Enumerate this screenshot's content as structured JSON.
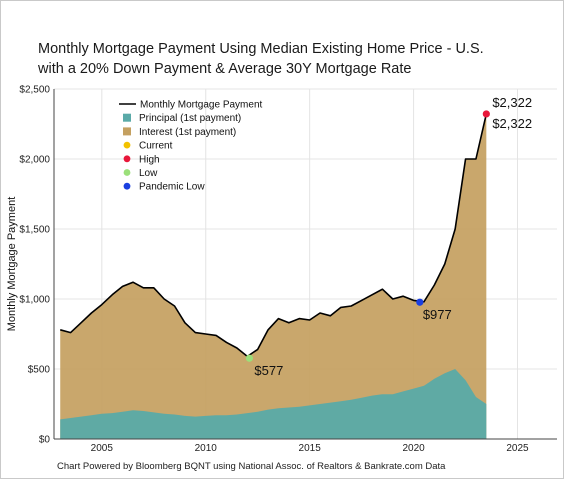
{
  "chart_data": {
    "type": "area",
    "title_line1": "Monthly Mortgage Payment Using Median Existing Home Price - U.S.",
    "title_line2": "with a 20% Down Payment & Average 30Y Mortgage Rate",
    "ylabel": "Monthly Mortgage Payment",
    "xlabel": "",
    "xlim": [
      2002.7,
      2026.9
    ],
    "ylim": [
      0,
      2500
    ],
    "x_ticks": [
      2005,
      2010,
      2015,
      2020,
      2025
    ],
    "x_tick_labels": [
      "2005",
      "2010",
      "2015",
      "2020",
      "2025"
    ],
    "y_ticks": [
      0,
      500,
      1000,
      1500,
      2000,
      2500
    ],
    "y_tick_labels": [
      "$0",
      "$500",
      "$1,000",
      "$1,500",
      "$2,000",
      "$2,500"
    ],
    "legend_position": "top-left",
    "legend": [
      {
        "label": "Monthly Mortgage Payment",
        "kind": "line",
        "color": "#000000"
      },
      {
        "label": "Principal (1st payment)",
        "kind": "square",
        "color": "#5aaaa8"
      },
      {
        "label": "Interest (1st payment)",
        "kind": "square",
        "color": "#c4a060"
      },
      {
        "label": "Current",
        "kind": "dot",
        "color": "#f2c200"
      },
      {
        "label": "High",
        "kind": "dot",
        "color": "#e8173a"
      },
      {
        "label": "Low",
        "kind": "dot",
        "color": "#9be07a"
      },
      {
        "label": "Pandemic Low",
        "kind": "dot",
        "color": "#1a3fe0"
      }
    ],
    "x": [
      2003.0,
      2003.5,
      2004.0,
      2004.5,
      2005.0,
      2005.5,
      2006.0,
      2006.5,
      2007.0,
      2007.5,
      2008.0,
      2008.5,
      2009.0,
      2009.5,
      2010.0,
      2010.5,
      2011.0,
      2011.5,
      2012.0,
      2012.5,
      2013.0,
      2013.5,
      2014.0,
      2014.5,
      2015.0,
      2015.5,
      2016.0,
      2016.5,
      2017.0,
      2017.5,
      2018.0,
      2018.5,
      2019.0,
      2019.5,
      2020.0,
      2020.5,
      2021.0,
      2021.5,
      2022.0,
      2022.5,
      2023.0,
      2023.5
    ],
    "series": [
      {
        "name": "Monthly Mortgage Payment",
        "values": [
          780,
          760,
          830,
          900,
          960,
          1030,
          1090,
          1120,
          1080,
          1080,
          1000,
          950,
          830,
          760,
          750,
          740,
          690,
          650,
          590,
          640,
          780,
          860,
          830,
          860,
          850,
          900,
          880,
          940,
          950,
          990,
          1030,
          1070,
          1000,
          1020,
          990,
          980,
          1100,
          1250,
          1500,
          2000,
          2000,
          2322
        ]
      },
      {
        "name": "Principal (1st payment)",
        "values": [
          140,
          150,
          160,
          170,
          180,
          185,
          195,
          205,
          200,
          190,
          180,
          175,
          165,
          160,
          165,
          170,
          170,
          175,
          185,
          195,
          210,
          220,
          225,
          230,
          240,
          250,
          260,
          270,
          280,
          295,
          310,
          320,
          320,
          340,
          360,
          380,
          430,
          470,
          500,
          420,
          300,
          250
        ]
      },
      {
        "name": "Interest (1st payment)",
        "values": [
          640,
          610,
          670,
          730,
          780,
          845,
          895,
          915,
          880,
          890,
          820,
          775,
          665,
          600,
          585,
          570,
          520,
          475,
          405,
          445,
          570,
          640,
          605,
          630,
          610,
          650,
          620,
          670,
          670,
          695,
          720,
          750,
          680,
          680,
          630,
          600,
          670,
          780,
          1000,
          1580,
          1700,
          2072
        ]
      }
    ],
    "markers": [
      {
        "name": "High",
        "x": 2023.5,
        "y": 2322,
        "label": "$2,322",
        "color": "#e8173a"
      },
      {
        "name": "Current",
        "x": 2023.5,
        "y": 2322,
        "label": "$2,322",
        "color": "#f2c200"
      },
      {
        "name": "Pandemic Low",
        "x": 2020.3,
        "y": 977,
        "label": "$977",
        "color": "#1a3fe0"
      },
      {
        "name": "Low",
        "x": 2012.1,
        "y": 577,
        "label": "$577",
        "color": "#9be07a"
      }
    ],
    "grid": true
  },
  "footer": "Chart Powered by Bloomberg BQNT using National Assoc. of Realtors & Bankrate.com Data"
}
